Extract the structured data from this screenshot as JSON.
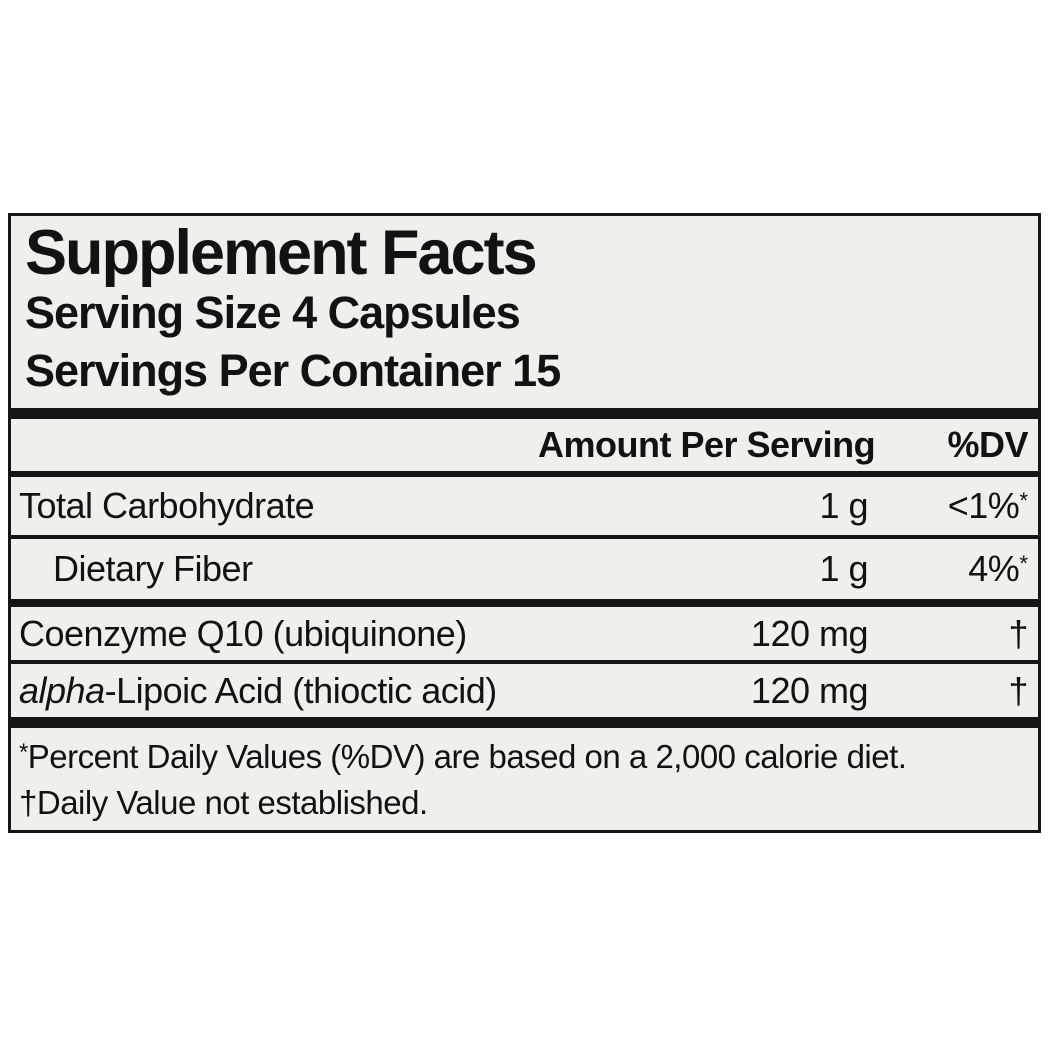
{
  "label": {
    "title": "Supplement Facts",
    "serving_size": "Serving Size 4 Capsules",
    "servings_per_container": "Servings Per Container 15",
    "columns": {
      "amount": "Amount Per Serving",
      "dv": "%DV"
    },
    "rows": [
      {
        "name_italic": "",
        "name": "Total Carbohydrate",
        "amount": "1 g",
        "dv": "<1%",
        "dv_sup": "*"
      },
      {
        "name_italic": "",
        "name": "Dietary Fiber",
        "amount": "1 g",
        "dv": "4%",
        "dv_sup": "*"
      },
      {
        "name_italic": "",
        "name": "Coenzyme Q10 (ubiquinone)",
        "amount": "120 mg",
        "dv": "†",
        "dv_sup": ""
      },
      {
        "name_italic": "alpha",
        "name": "-Lipoic Acid (thioctic acid)",
        "amount": "120 mg",
        "dv": "†",
        "dv_sup": ""
      }
    ],
    "footnotes": [
      {
        "marker": "*",
        "text": "Percent Daily Values (%DV) are based on a 2,000 calorie diet."
      },
      {
        "marker": "†",
        "text": "Daily Value not established."
      }
    ],
    "colors": {
      "text": "#121212",
      "rule": "#161616",
      "label_background": "#f0efeb",
      "page_background": "#ffffff"
    }
  }
}
